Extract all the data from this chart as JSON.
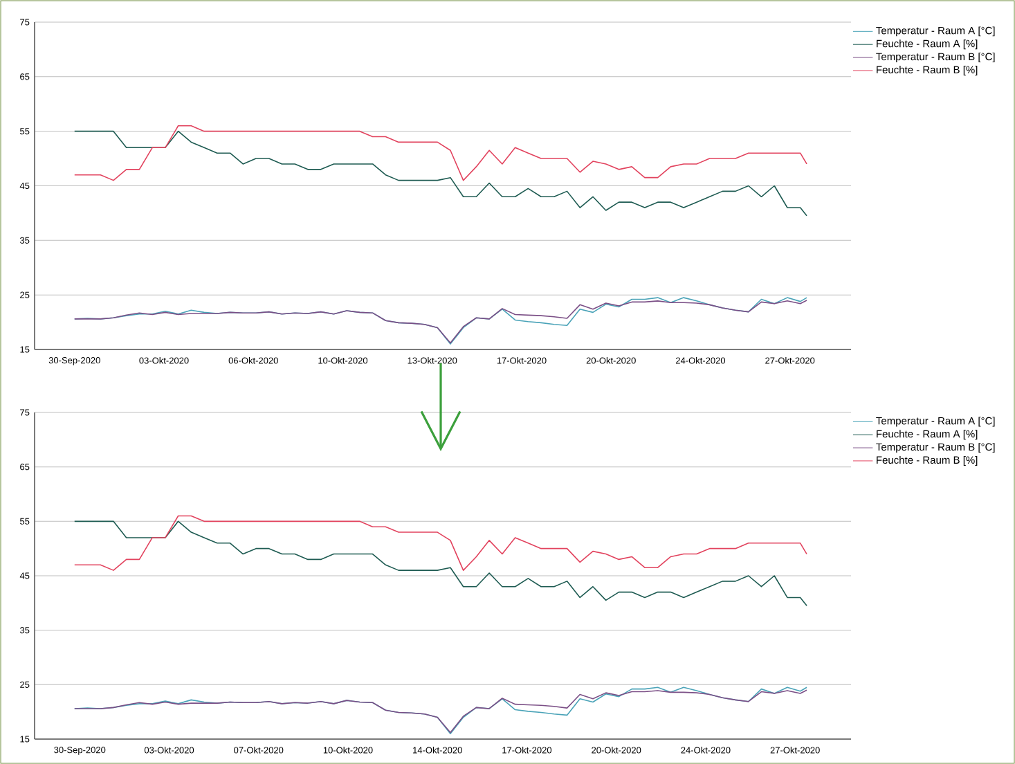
{
  "chart_data": [
    {
      "type": "line",
      "x": [
        "2020-09-30T00:00",
        "2020-09-30T12:00",
        "2020-10-01T00:00",
        "2020-10-01T12:00",
        "2020-10-02T00:00",
        "2020-10-02T12:00",
        "2020-10-03T00:00",
        "2020-10-03T12:00",
        "2020-10-04T00:00",
        "2020-10-04T12:00",
        "2020-10-05T00:00",
        "2020-10-05T12:00",
        "2020-10-06T00:00",
        "2020-10-06T12:00",
        "2020-10-07T00:00",
        "2020-10-07T12:00",
        "2020-10-08T00:00",
        "2020-10-08T12:00",
        "2020-10-09T00:00",
        "2020-10-09T12:00",
        "2020-10-10T00:00",
        "2020-10-10T12:00",
        "2020-10-11T00:00",
        "2020-10-11T12:00",
        "2020-10-12T00:00",
        "2020-10-12T12:00",
        "2020-10-13T00:00",
        "2020-10-13T12:00",
        "2020-10-14T00:00",
        "2020-10-14T12:00",
        "2020-10-15T00:00",
        "2020-10-15T12:00",
        "2020-10-16T00:00",
        "2020-10-16T12:00",
        "2020-10-17T00:00",
        "2020-10-17T12:00",
        "2020-10-18T00:00",
        "2020-10-18T12:00",
        "2020-10-19T00:00",
        "2020-10-19T12:00",
        "2020-10-20T00:00",
        "2020-10-20T12:00",
        "2020-10-21T00:00",
        "2020-10-21T12:00",
        "2020-10-22T00:00",
        "2020-10-22T12:00",
        "2020-10-23T00:00",
        "2020-10-23T12:00",
        "2020-10-24T00:00",
        "2020-10-24T12:00",
        "2020-10-25T00:00",
        "2020-10-25T12:00",
        "2020-10-26T00:00",
        "2020-10-26T12:00",
        "2020-10-27T00:00",
        "2020-10-27T12:00",
        "2020-10-28T00:00",
        "2020-10-28T06:00"
      ],
      "series": [
        {
          "name": "Temperatur - Raum A [°C]",
          "color": "#4aa3b8",
          "values": [
            20.6,
            20.7,
            20.6,
            20.8,
            21.2,
            21.5,
            21.5,
            22.0,
            21.5,
            22.2,
            21.8,
            21.6,
            21.8,
            21.7,
            21.7,
            21.9,
            21.5,
            21.7,
            21.6,
            21.9,
            21.5,
            22.1,
            21.8,
            21.7,
            20.3,
            19.9,
            19.8,
            19.6,
            19.0,
            16.0,
            19.0,
            20.8,
            20.6,
            22.4,
            20.4,
            20.1,
            19.9,
            19.6,
            19.4,
            22.4,
            21.8,
            23.3,
            22.8,
            24.2,
            24.2,
            24.5,
            23.6,
            24.5,
            23.9,
            23.2,
            22.6,
            22.2,
            21.9,
            24.2,
            23.4,
            24.5,
            23.8,
            24.5
          ]
        },
        {
          "name": "Feuchte - Raum A [%]",
          "color": "#1e5b52",
          "values": [
            55,
            55,
            55,
            55,
            52,
            52,
            52,
            52,
            55,
            53,
            52,
            51,
            51,
            49,
            50,
            50,
            49,
            49,
            48,
            48,
            49,
            49,
            49,
            49,
            47,
            46,
            46,
            46,
            46,
            46.5,
            43,
            43,
            45.5,
            43,
            43,
            44.5,
            43,
            43,
            44,
            41,
            43,
            40.5,
            42,
            42,
            41,
            42,
            42,
            41,
            42,
            43,
            44,
            44,
            45,
            43,
            45,
            41,
            41,
            39.5
          ]
        },
        {
          "name": "Temperatur - Raum B [°C]",
          "color": "#7b4f86",
          "values": [
            20.6,
            20.6,
            20.6,
            20.8,
            21.3,
            21.7,
            21.4,
            21.8,
            21.4,
            21.6,
            21.6,
            21.6,
            21.8,
            21.7,
            21.7,
            21.9,
            21.5,
            21.7,
            21.6,
            21.9,
            21.5,
            22.1,
            21.8,
            21.7,
            20.3,
            19.9,
            19.8,
            19.6,
            19.0,
            16.2,
            19.2,
            20.8,
            20.6,
            22.5,
            21.4,
            21.3,
            21.2,
            21.0,
            20.7,
            23.2,
            22.4,
            23.5,
            23.0,
            23.7,
            23.7,
            23.9,
            23.6,
            23.6,
            23.5,
            23.2,
            22.6,
            22.2,
            21.9,
            23.7,
            23.4,
            23.9,
            23.4,
            24.0
          ]
        },
        {
          "name": "Feuchte - Raum B [%]",
          "color": "#e2435e",
          "values": [
            47,
            47,
            47,
            46,
            48,
            48,
            52,
            52,
            56,
            56,
            55,
            55,
            55,
            55,
            55,
            55,
            55,
            55,
            55,
            55,
            55,
            55,
            55,
            54,
            54,
            53,
            53,
            53,
            53,
            51.5,
            46,
            48.5,
            51.5,
            49,
            52,
            51,
            50,
            50,
            50,
            47.5,
            49.5,
            49,
            48,
            48.5,
            46.5,
            46.5,
            48.5,
            49,
            49,
            50,
            50,
            50,
            51,
            51,
            51,
            51,
            51,
            49
          ]
        }
      ],
      "xlim": [
        "2020-09-28T11:00",
        "2020-10-29T23:00"
      ],
      "xticks": [
        {
          "value": "2020-09-30T00:00",
          "label": "30-Sep-2020"
        },
        {
          "value": "2020-10-03T10:48",
          "label": "03-Okt-2020"
        },
        {
          "value": "2020-10-06T21:36",
          "label": "06-Okt-2020"
        },
        {
          "value": "2020-10-10T08:24",
          "label": "10-Okt-2020"
        },
        {
          "value": "2020-10-13T19:12",
          "label": "13-Okt-2020"
        },
        {
          "value": "2020-10-17T06:00",
          "label": "17-Okt-2020"
        },
        {
          "value": "2020-10-20T16:48",
          "label": "20-Okt-2020"
        },
        {
          "value": "2020-10-24T03:36",
          "label": "24-Okt-2020"
        },
        {
          "value": "2020-10-27T14:24",
          "label": "27-Okt-2020"
        }
      ],
      "ylim": [
        15,
        75
      ],
      "yticks": [
        15,
        25,
        35,
        45,
        55,
        65,
        75
      ],
      "grid": "y",
      "legend": "right"
    },
    {
      "type": "line",
      "x": [
        "2020-09-30T00:00",
        "2020-09-30T12:00",
        "2020-10-01T00:00",
        "2020-10-01T12:00",
        "2020-10-02T00:00",
        "2020-10-02T12:00",
        "2020-10-03T00:00",
        "2020-10-03T12:00",
        "2020-10-04T00:00",
        "2020-10-04T12:00",
        "2020-10-05T00:00",
        "2020-10-05T12:00",
        "2020-10-06T00:00",
        "2020-10-06T12:00",
        "2020-10-07T00:00",
        "2020-10-07T12:00",
        "2020-10-08T00:00",
        "2020-10-08T12:00",
        "2020-10-09T00:00",
        "2020-10-09T12:00",
        "2020-10-10T00:00",
        "2020-10-10T12:00",
        "2020-10-11T00:00",
        "2020-10-11T12:00",
        "2020-10-12T00:00",
        "2020-10-12T12:00",
        "2020-10-13T00:00",
        "2020-10-13T12:00",
        "2020-10-14T00:00",
        "2020-10-14T12:00",
        "2020-10-15T00:00",
        "2020-10-15T12:00",
        "2020-10-16T00:00",
        "2020-10-16T12:00",
        "2020-10-17T00:00",
        "2020-10-17T12:00",
        "2020-10-18T00:00",
        "2020-10-18T12:00",
        "2020-10-19T00:00",
        "2020-10-19T12:00",
        "2020-10-20T00:00",
        "2020-10-20T12:00",
        "2020-10-21T00:00",
        "2020-10-21T12:00",
        "2020-10-22T00:00",
        "2020-10-22T12:00",
        "2020-10-23T00:00",
        "2020-10-23T12:00",
        "2020-10-24T00:00",
        "2020-10-24T12:00",
        "2020-10-25T00:00",
        "2020-10-25T12:00",
        "2020-10-26T00:00",
        "2020-10-26T12:00",
        "2020-10-27T00:00",
        "2020-10-27T12:00",
        "2020-10-28T00:00",
        "2020-10-28T06:00"
      ],
      "series": [
        {
          "name": "Temperatur - Raum A [°C]",
          "color": "#4aa3b8",
          "values": [
            20.6,
            20.7,
            20.6,
            20.8,
            21.2,
            21.5,
            21.5,
            22.0,
            21.5,
            22.2,
            21.8,
            21.6,
            21.8,
            21.7,
            21.7,
            21.9,
            21.5,
            21.7,
            21.6,
            21.9,
            21.5,
            22.1,
            21.8,
            21.7,
            20.3,
            19.9,
            19.8,
            19.6,
            19.0,
            16.0,
            19.0,
            20.8,
            20.6,
            22.4,
            20.4,
            20.1,
            19.9,
            19.6,
            19.4,
            22.4,
            21.8,
            23.3,
            22.8,
            24.2,
            24.2,
            24.5,
            23.6,
            24.5,
            23.9,
            23.2,
            22.6,
            22.2,
            21.9,
            24.2,
            23.4,
            24.5,
            23.8,
            24.5
          ]
        },
        {
          "name": "Feuchte - Raum A [%]",
          "color": "#1e5b52",
          "values": [
            55,
            55,
            55,
            55,
            52,
            52,
            52,
            52,
            55,
            53,
            52,
            51,
            51,
            49,
            50,
            50,
            49,
            49,
            48,
            48,
            49,
            49,
            49,
            49,
            47,
            46,
            46,
            46,
            46,
            46.5,
            43,
            43,
            45.5,
            43,
            43,
            44.5,
            43,
            43,
            44,
            41,
            43,
            40.5,
            42,
            42,
            41,
            42,
            42,
            41,
            42,
            43,
            44,
            44,
            45,
            43,
            45,
            41,
            41,
            39.5
          ]
        },
        {
          "name": "Temperatur - Raum B [°C]",
          "color": "#7b4f86",
          "values": [
            20.6,
            20.6,
            20.6,
            20.8,
            21.3,
            21.7,
            21.4,
            21.8,
            21.4,
            21.6,
            21.6,
            21.6,
            21.8,
            21.7,
            21.7,
            21.9,
            21.5,
            21.7,
            21.6,
            21.9,
            21.5,
            22.1,
            21.8,
            21.7,
            20.3,
            19.9,
            19.8,
            19.6,
            19.0,
            16.2,
            19.2,
            20.8,
            20.6,
            22.5,
            21.4,
            21.3,
            21.2,
            21.0,
            20.7,
            23.2,
            22.4,
            23.5,
            23.0,
            23.7,
            23.7,
            23.9,
            23.6,
            23.6,
            23.5,
            23.2,
            22.6,
            22.2,
            21.9,
            23.7,
            23.4,
            23.9,
            23.4,
            24.0
          ]
        },
        {
          "name": "Feuchte - Raum B [%]",
          "color": "#e2435e",
          "values": [
            47,
            47,
            47,
            46,
            48,
            48,
            52,
            52,
            56,
            56,
            55,
            55,
            55,
            55,
            55,
            55,
            55,
            55,
            55,
            55,
            55,
            55,
            55,
            54,
            54,
            53,
            53,
            53,
            53,
            51.5,
            46,
            48.5,
            51.5,
            49,
            52,
            51,
            50,
            50,
            50,
            47.5,
            49.5,
            49,
            48,
            48.5,
            46.5,
            46.5,
            48.5,
            49,
            49,
            50,
            50,
            50,
            51,
            51,
            51,
            51,
            51,
            49
          ]
        }
      ],
      "xlim": [
        "2020-09-28T11:00",
        "2020-10-29T23:00"
      ],
      "xticks": [
        {
          "value": "2020-09-30T04:48",
          "label": "30-Sep-2020"
        },
        {
          "value": "2020-10-03T15:36",
          "label": "03-Okt-2020"
        },
        {
          "value": "2020-10-07T02:24",
          "label": "07-Okt-2020"
        },
        {
          "value": "2020-10-10T13:12",
          "label": "10-Okt-2020"
        },
        {
          "value": "2020-10-14T00:00",
          "label": "14-Okt-2020"
        },
        {
          "value": "2020-10-17T10:48",
          "label": "17-Okt-2020"
        },
        {
          "value": "2020-10-20T21:36",
          "label": "20-Okt-2020"
        },
        {
          "value": "2020-10-24T08:24",
          "label": "24-Okt-2020"
        },
        {
          "value": "2020-10-27T19:12",
          "label": "27-Okt-2020"
        }
      ],
      "ylim": [
        15,
        75
      ],
      "yticks": [
        15,
        25,
        35,
        45,
        55,
        65,
        75
      ],
      "grid": "y",
      "legend": "right"
    }
  ]
}
